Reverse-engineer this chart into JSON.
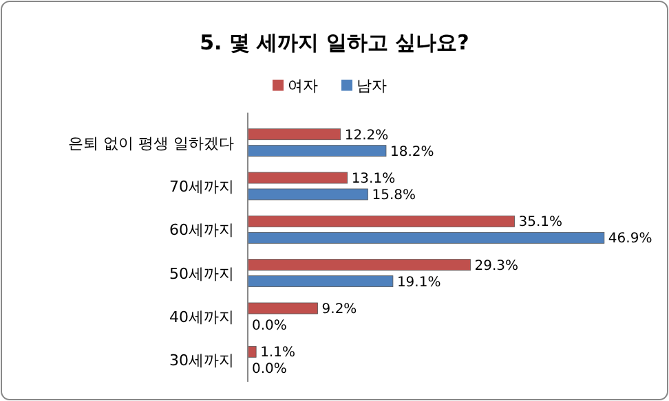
{
  "chart_data": {
    "type": "bar",
    "orientation": "horizontal",
    "title": "5. 몇 세까지 일하고 싶나요?",
    "categories": [
      "은퇴 없이 평생 일하겠다",
      "70세까지",
      "60세까지",
      "50세까지",
      "40세까지",
      "30세까지"
    ],
    "series": [
      {
        "name": "여자",
        "color": "#c0504d",
        "values": [
          12.2,
          13.1,
          35.1,
          29.3,
          9.2,
          1.1
        ],
        "value_labels": [
          "12.2%",
          "13.1%",
          "35.1%",
          "29.3%",
          "9.2%",
          "1.1%"
        ]
      },
      {
        "name": "남자",
        "color": "#4f81bd",
        "values": [
          18.2,
          15.8,
          46.9,
          19.1,
          0.0,
          0.0
        ],
        "value_labels": [
          "18.2%",
          "15.8%",
          "46.9%",
          "19.1%",
          "0.0%",
          "0.0%"
        ]
      }
    ],
    "legend": "top",
    "grid": false,
    "tick_labels": "y"
  }
}
